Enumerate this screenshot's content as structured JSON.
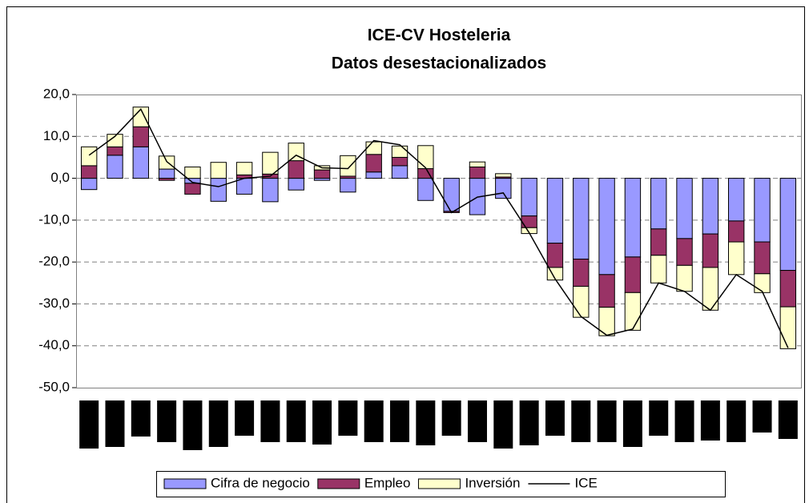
{
  "chart_data": {
    "type": "bar",
    "stacked": true,
    "title": [
      "ICE-CV Hosteleria",
      "Datos desestacionalizados"
    ],
    "categories": [
      null,
      null,
      null,
      null,
      null,
      null,
      null,
      null,
      null,
      null,
      null,
      null,
      null,
      null,
      null,
      null,
      null,
      null,
      null,
      null,
      null,
      null,
      null,
      null,
      null,
      null,
      null,
      null
    ],
    "series": [
      {
        "name": "Cifra de negocio",
        "color": "#9999ff",
        "values": [
          -2.7,
          5.5,
          7.5,
          2.2,
          -1.2,
          -5.5,
          -3.8,
          -5.6,
          -2.8,
          -0.5,
          -3.3,
          1.5,
          3.0,
          -5.3,
          -7.9,
          -8.7,
          -4.8,
          -9.0,
          -15.5,
          -19.3,
          -23.0,
          -18.8,
          -12.1,
          -14.4,
          -13.3,
          -10.2,
          -15.2,
          -22.0
        ]
      },
      {
        "name": "Empleo",
        "color": "#993366",
        "values": [
          3.0,
          2.0,
          4.8,
          -0.5,
          -2.6,
          0,
          0.8,
          1.0,
          4.2,
          2.0,
          0.5,
          4.2,
          2.0,
          2.3,
          -0.3,
          2.7,
          0.3,
          -2.8,
          -5.8,
          -6.5,
          -7.8,
          -8.5,
          -6.3,
          -6.4,
          -8.0,
          -5.0,
          -7.6,
          -8.7
        ]
      },
      {
        "name": "Inversión",
        "color": "#ffffcc",
        "values": [
          4.5,
          3.0,
          4.7,
          3.1,
          2.7,
          3.8,
          3.0,
          5.2,
          4.2,
          1.0,
          4.9,
          3.0,
          2.7,
          5.5,
          0,
          1.2,
          0.8,
          -1.4,
          -3.0,
          -7.4,
          -6.8,
          -9.0,
          -6.6,
          -6.2,
          -10.2,
          -7.8,
          -4.5,
          -10.0
        ]
      },
      {
        "name": "ICE",
        "type": "line",
        "color": "#000000",
        "values": [
          5.5,
          10,
          16.5,
          4,
          -1,
          -2,
          0,
          0.5,
          5.5,
          2.5,
          2.3,
          9,
          8,
          2.5,
          -8.2,
          -4.5,
          -3.5,
          -13,
          -24,
          -33,
          -37.5,
          -36,
          -25,
          -27,
          -31.5,
          -23,
          -27,
          -40.5
        ]
      }
    ],
    "ylim": [
      -50,
      20
    ],
    "yticks": [
      {
        "value": -50,
        "label": "-50,0"
      },
      {
        "value": -40,
        "label": "-40,0"
      },
      {
        "value": -30,
        "label": "-30,0"
      },
      {
        "value": -20,
        "label": "-20,0"
      },
      {
        "value": -10,
        "label": "-10,0"
      },
      {
        "value": 0,
        "label": "0,0"
      },
      {
        "value": 10,
        "label": "10,0"
      },
      {
        "value": 20,
        "label": "20,0"
      }
    ],
    "grid": true,
    "legend": "bottom"
  }
}
